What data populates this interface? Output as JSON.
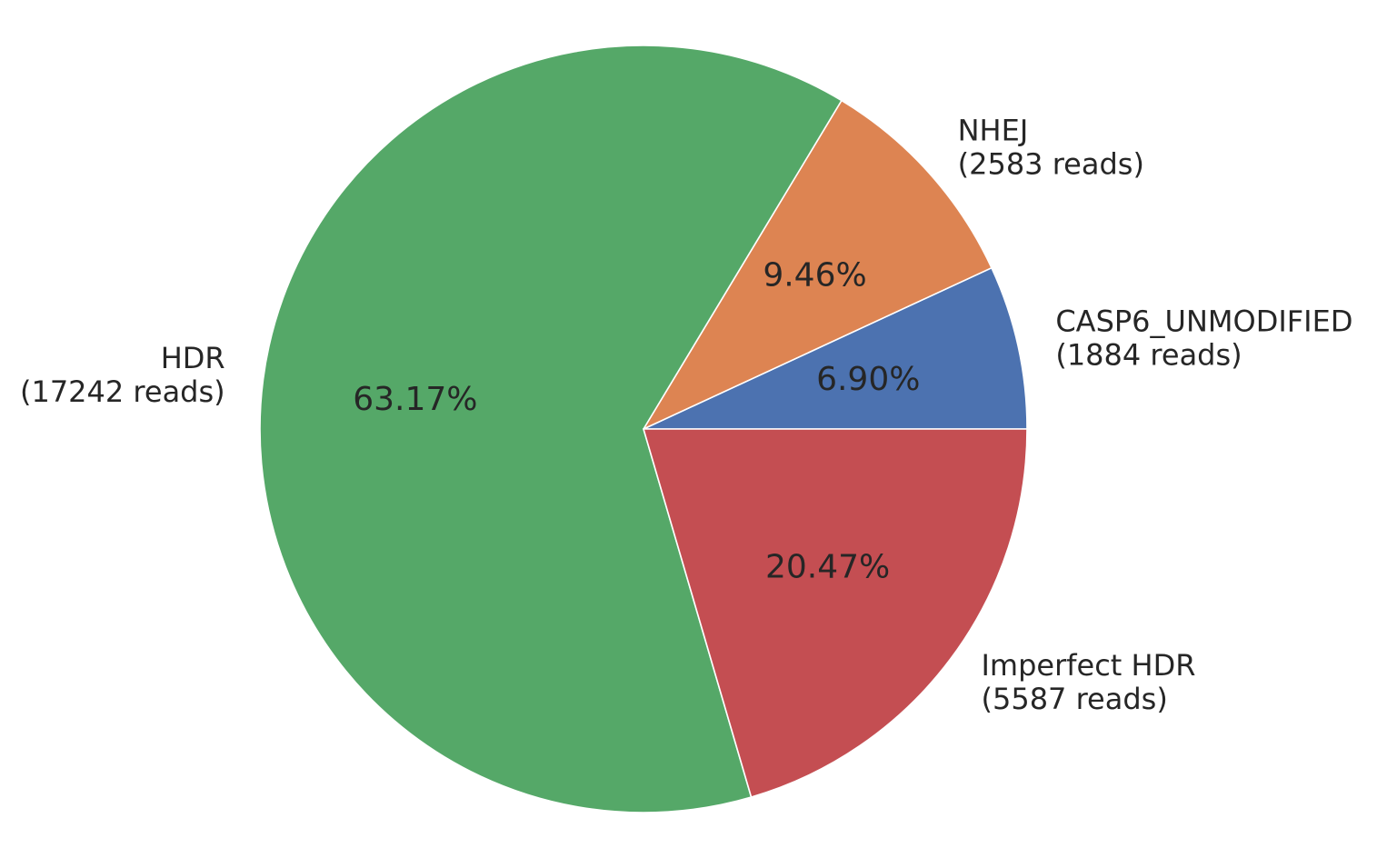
{
  "chart_data": {
    "type": "pie",
    "title": "",
    "start_angle_deg": 0,
    "direction": "counterclockwise",
    "slices": [
      {
        "label": "CASP6_UNMODIFIED",
        "reads_text": "(1884 reads)",
        "value": 1884,
        "percent_text": "6.90%",
        "color": "#4c72b0"
      },
      {
        "label": "NHEJ",
        "reads_text": "(2583 reads)",
        "value": 2583,
        "percent_text": "9.46%",
        "color": "#dd8452"
      },
      {
        "label": "HDR",
        "reads_text": "(17242 reads)",
        "value": 17242,
        "percent_text": "63.17%",
        "color": "#55a868"
      },
      {
        "label": "Imperfect HDR",
        "reads_text": "(5587 reads)",
        "value": 5587,
        "percent_text": "20.47%",
        "color": "#c44e52"
      }
    ]
  }
}
